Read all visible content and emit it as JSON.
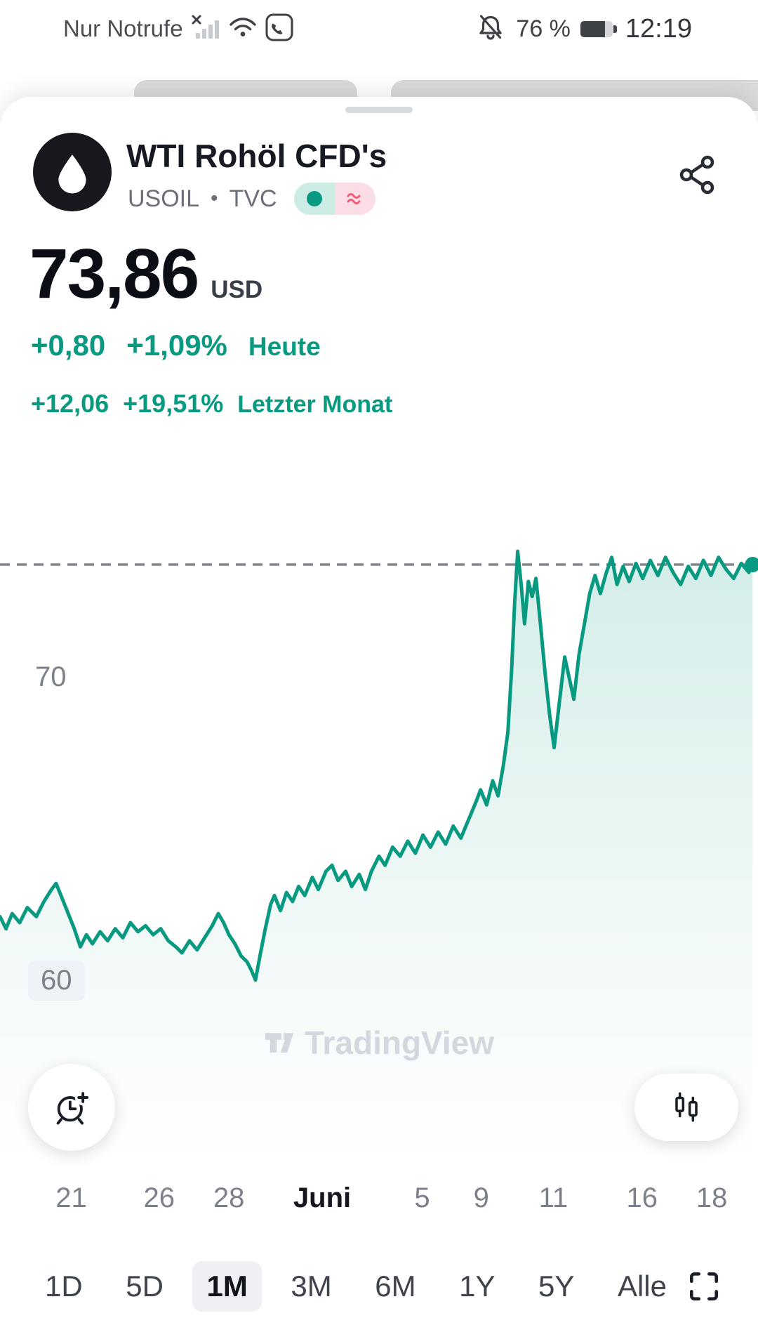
{
  "status_bar": {
    "carrier": "Nur Notrufe",
    "battery_percent": "76 %",
    "time": "12:19"
  },
  "sheet": {
    "title": "WTI Rohöl CFD's",
    "symbol": "USOIL",
    "separator": "•",
    "exchange": "TVC"
  },
  "price": {
    "value": "73,86",
    "currency": "USD",
    "change_today": {
      "abs": "+0,80",
      "pct": "+1,09%",
      "label": "Heute"
    },
    "change_month": {
      "abs": "+12,06",
      "pct": "+19,51%",
      "label": "Letzter Monat"
    }
  },
  "watermark": {
    "label": "TradingView"
  },
  "range_selector": {
    "options": [
      "1D",
      "5D",
      "1M",
      "3M",
      "6M",
      "1Y",
      "5Y",
      "Alle"
    ],
    "selected": "1M"
  },
  "icons": {
    "logo": "oil-drop-icon",
    "header_right": "share-icon",
    "status_left": [
      "no-signal-x-icon",
      "wifi-icon",
      "wifi-calling-icon"
    ],
    "status_right": [
      "bell-off-icon",
      "battery-icon"
    ],
    "chart_left_button": "add-alert-clock-icon",
    "chart_right_button": "candlestick-icon",
    "range_right": "fullscreen-icon",
    "market_toggle": [
      "green-dot",
      "pink-waves"
    ]
  },
  "chart_data": {
    "type": "area",
    "title": "WTI Rohöl CFD's — 1M Verlauf",
    "line_color": "#089981",
    "current_price": 73.86,
    "current_price_line": "dashed",
    "y_ticks": [
      60,
      70
    ],
    "y_range_approx": [
      59.5,
      76.5
    ],
    "legend": "none",
    "grid": "off",
    "x_ticks": [
      {
        "label": "21",
        "t": 0.094
      },
      {
        "label": "26",
        "t": 0.21
      },
      {
        "label": "28",
        "t": 0.302
      },
      {
        "label": "Juni",
        "t": 0.425,
        "strong": true
      },
      {
        "label": "5",
        "t": 0.557
      },
      {
        "label": "9",
        "t": 0.635
      },
      {
        "label": "11",
        "t": 0.73
      },
      {
        "label": "16",
        "t": 0.847
      },
      {
        "label": "18",
        "t": 0.939
      }
    ],
    "points": [
      [
        0,
        62.2
      ],
      [
        0.008,
        61.8
      ],
      [
        0.016,
        62.3
      ],
      [
        0.026,
        62
      ],
      [
        0.036,
        62.5
      ],
      [
        0.048,
        62.2
      ],
      [
        0.058,
        62.7
      ],
      [
        0.068,
        63.1
      ],
      [
        0.074,
        63.3
      ],
      [
        0.082,
        62.8
      ],
      [
        0.09,
        62.3
      ],
      [
        0.098,
        61.8
      ],
      [
        0.106,
        61.2
      ],
      [
        0.114,
        61.6
      ],
      [
        0.122,
        61.3
      ],
      [
        0.132,
        61.7
      ],
      [
        0.142,
        61.4
      ],
      [
        0.152,
        61.8
      ],
      [
        0.162,
        61.5
      ],
      [
        0.172,
        62
      ],
      [
        0.182,
        61.7
      ],
      [
        0.192,
        61.9
      ],
      [
        0.202,
        61.6
      ],
      [
        0.212,
        61.8
      ],
      [
        0.222,
        61.4
      ],
      [
        0.232,
        61.2
      ],
      [
        0.24,
        61
      ],
      [
        0.25,
        61.4
      ],
      [
        0.26,
        61.1
      ],
      [
        0.27,
        61.5
      ],
      [
        0.28,
        61.9
      ],
      [
        0.288,
        62.3
      ],
      [
        0.295,
        62
      ],
      [
        0.302,
        61.6
      ],
      [
        0.31,
        61.3
      ],
      [
        0.318,
        60.9
      ],
      [
        0.326,
        60.7
      ],
      [
        0.332,
        60.4
      ],
      [
        0.337,
        60.1
      ],
      [
        0.343,
        60.9
      ],
      [
        0.35,
        61.8
      ],
      [
        0.357,
        62.6
      ],
      [
        0.362,
        62.9
      ],
      [
        0.37,
        62.4
      ],
      [
        0.378,
        63
      ],
      [
        0.386,
        62.7
      ],
      [
        0.394,
        63.2
      ],
      [
        0.402,
        62.9
      ],
      [
        0.412,
        63.5
      ],
      [
        0.42,
        63.1
      ],
      [
        0.43,
        63.7
      ],
      [
        0.438,
        63.9
      ],
      [
        0.446,
        63.4
      ],
      [
        0.456,
        63.7
      ],
      [
        0.464,
        63.2
      ],
      [
        0.474,
        63.6
      ],
      [
        0.482,
        63.1
      ],
      [
        0.49,
        63.7
      ],
      [
        0.5,
        64.2
      ],
      [
        0.508,
        63.9
      ],
      [
        0.518,
        64.5
      ],
      [
        0.528,
        64.2
      ],
      [
        0.538,
        64.7
      ],
      [
        0.548,
        64.3
      ],
      [
        0.558,
        64.9
      ],
      [
        0.568,
        64.5
      ],
      [
        0.578,
        65
      ],
      [
        0.588,
        64.6
      ],
      [
        0.598,
        65.2
      ],
      [
        0.608,
        64.8
      ],
      [
        0.618,
        65.4
      ],
      [
        0.628,
        66
      ],
      [
        0.634,
        66.4
      ],
      [
        0.642,
        65.9
      ],
      [
        0.65,
        66.7
      ],
      [
        0.657,
        66.2
      ],
      [
        0.664,
        67.2
      ],
      [
        0.67,
        68.3
      ],
      [
        0.675,
        70.4
      ],
      [
        0.679,
        72.6
      ],
      [
        0.683,
        74.3
      ],
      [
        0.688,
        73.1
      ],
      [
        0.692,
        71.9
      ],
      [
        0.697,
        73.3
      ],
      [
        0.702,
        72.8
      ],
      [
        0.707,
        73.4
      ],
      [
        0.713,
        71.9
      ],
      [
        0.719,
        70.3
      ],
      [
        0.725,
        68.9
      ],
      [
        0.731,
        67.8
      ],
      [
        0.738,
        69.3
      ],
      [
        0.745,
        70.8
      ],
      [
        0.751,
        70.1
      ],
      [
        0.757,
        69.4
      ],
      [
        0.764,
        70.9
      ],
      [
        0.771,
        71.9
      ],
      [
        0.778,
        72.9
      ],
      [
        0.785,
        73.5
      ],
      [
        0.792,
        72.9
      ],
      [
        0.8,
        73.6
      ],
      [
        0.807,
        74.1
      ],
      [
        0.814,
        73.2
      ],
      [
        0.822,
        73.8
      ],
      [
        0.83,
        73.3
      ],
      [
        0.839,
        73.9
      ],
      [
        0.848,
        73.4
      ],
      [
        0.858,
        74
      ],
      [
        0.868,
        73.5
      ],
      [
        0.878,
        74.1
      ],
      [
        0.888,
        73.6
      ],
      [
        0.898,
        73.2
      ],
      [
        0.908,
        73.8
      ],
      [
        0.918,
        73.4
      ],
      [
        0.928,
        74
      ],
      [
        0.938,
        73.5
      ],
      [
        0.948,
        74.1
      ],
      [
        0.958,
        73.7
      ],
      [
        0.968,
        73.4
      ],
      [
        0.978,
        73.9
      ],
      [
        0.988,
        73.6
      ],
      [
        0.993,
        73.86
      ]
    ]
  }
}
